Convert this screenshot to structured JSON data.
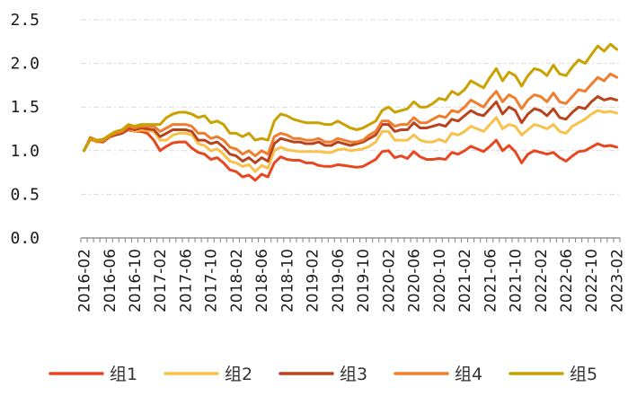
{
  "chart_data": {
    "type": "line",
    "title": "",
    "xlabel": "",
    "ylabel": "",
    "ylim": [
      0,
      2.5
    ],
    "yticks": [
      "0.0",
      "0.5",
      "1.0",
      "1.5",
      "2.0",
      "2.5"
    ],
    "grid": "horizontal-dashed",
    "legend_position": "bottom",
    "x_start": "2016-02",
    "x_tick_labels": [
      "2016-02",
      "2016-06",
      "2016-10",
      "2017-02",
      "2017-06",
      "2017-10",
      "2018-02",
      "2018-06",
      "2018-10",
      "2019-02",
      "2019-06",
      "2019-10",
      "2020-02",
      "2020-06",
      "2020-10",
      "2021-02",
      "2021-06",
      "2021-10",
      "2022-02",
      "2022-06",
      "2022-10",
      "2023-02"
    ],
    "series": [
      {
        "name": "组1",
        "color": "#E8461E",
        "values": [
          1.0,
          1.15,
          1.12,
          1.1,
          1.16,
          1.2,
          1.2,
          1.24,
          1.22,
          1.22,
          1.2,
          1.12,
          1.0,
          1.05,
          1.09,
          1.1,
          1.1,
          1.03,
          0.98,
          0.96,
          0.9,
          0.92,
          0.86,
          0.78,
          0.76,
          0.7,
          0.72,
          0.66,
          0.73,
          0.7,
          0.86,
          0.93,
          0.9,
          0.89,
          0.89,
          0.86,
          0.86,
          0.83,
          0.82,
          0.82,
          0.84,
          0.83,
          0.82,
          0.81,
          0.82,
          0.86,
          0.9,
          0.99,
          1.0,
          0.92,
          0.94,
          0.91,
          0.99,
          0.93,
          0.9,
          0.9,
          0.91,
          0.9,
          0.98,
          0.96,
          1.0,
          1.05,
          1.02,
          0.99,
          1.05,
          1.12,
          1.0,
          1.06,
          0.99,
          0.86,
          0.96,
          1.0,
          0.98,
          0.96,
          0.98,
          0.92,
          0.88,
          0.94,
          0.99,
          1.0,
          1.04,
          1.08,
          1.05,
          1.06,
          1.04
        ]
      },
      {
        "name": "组2",
        "color": "#F7C14A",
        "values": [
          1.0,
          1.13,
          1.1,
          1.1,
          1.15,
          1.18,
          1.2,
          1.26,
          1.22,
          1.24,
          1.23,
          1.22,
          1.12,
          1.12,
          1.18,
          1.2,
          1.2,
          1.18,
          1.08,
          1.06,
          1.0,
          1.02,
          0.96,
          0.88,
          0.86,
          0.82,
          0.84,
          0.76,
          0.83,
          0.8,
          1.0,
          1.04,
          1.01,
          1.0,
          0.99,
          0.99,
          0.99,
          0.99,
          0.98,
          0.98,
          1.01,
          1.02,
          1.0,
          1.01,
          1.02,
          1.05,
          1.1,
          1.22,
          1.22,
          1.12,
          1.12,
          1.12,
          1.18,
          1.12,
          1.1,
          1.1,
          1.13,
          1.1,
          1.2,
          1.18,
          1.22,
          1.28,
          1.25,
          1.22,
          1.3,
          1.38,
          1.25,
          1.3,
          1.28,
          1.18,
          1.24,
          1.3,
          1.28,
          1.25,
          1.3,
          1.22,
          1.2,
          1.28,
          1.32,
          1.36,
          1.42,
          1.46,
          1.44,
          1.45,
          1.43
        ]
      },
      {
        "name": "组3",
        "color": "#B8431F",
        "values": [
          1.0,
          1.14,
          1.11,
          1.1,
          1.16,
          1.18,
          1.2,
          1.26,
          1.24,
          1.26,
          1.25,
          1.24,
          1.16,
          1.2,
          1.24,
          1.24,
          1.24,
          1.22,
          1.12,
          1.12,
          1.08,
          1.1,
          1.04,
          0.96,
          0.94,
          0.88,
          0.92,
          0.86,
          0.92,
          0.88,
          1.08,
          1.14,
          1.12,
          1.1,
          1.1,
          1.08,
          1.08,
          1.1,
          1.06,
          1.06,
          1.1,
          1.08,
          1.06,
          1.08,
          1.1,
          1.14,
          1.18,
          1.3,
          1.3,
          1.22,
          1.24,
          1.24,
          1.32,
          1.26,
          1.26,
          1.28,
          1.3,
          1.28,
          1.36,
          1.34,
          1.4,
          1.46,
          1.42,
          1.4,
          1.48,
          1.56,
          1.42,
          1.5,
          1.46,
          1.32,
          1.42,
          1.48,
          1.46,
          1.4,
          1.48,
          1.38,
          1.36,
          1.44,
          1.5,
          1.48,
          1.56,
          1.62,
          1.58,
          1.6,
          1.58
        ]
      },
      {
        "name": "组4",
        "color": "#F07D2E",
        "values": [
          1.0,
          1.13,
          1.11,
          1.11,
          1.17,
          1.2,
          1.22,
          1.28,
          1.26,
          1.28,
          1.28,
          1.28,
          1.22,
          1.26,
          1.3,
          1.3,
          1.3,
          1.28,
          1.2,
          1.2,
          1.14,
          1.16,
          1.12,
          1.04,
          1.02,
          0.96,
          1.0,
          0.94,
          1.0,
          0.96,
          1.16,
          1.2,
          1.18,
          1.14,
          1.14,
          1.12,
          1.12,
          1.14,
          1.1,
          1.1,
          1.14,
          1.12,
          1.1,
          1.1,
          1.12,
          1.18,
          1.22,
          1.34,
          1.34,
          1.28,
          1.3,
          1.3,
          1.38,
          1.32,
          1.32,
          1.36,
          1.4,
          1.38,
          1.46,
          1.44,
          1.5,
          1.58,
          1.54,
          1.5,
          1.6,
          1.68,
          1.56,
          1.64,
          1.6,
          1.48,
          1.58,
          1.64,
          1.62,
          1.56,
          1.66,
          1.56,
          1.54,
          1.62,
          1.7,
          1.68,
          1.76,
          1.84,
          1.8,
          1.88,
          1.84
        ]
      },
      {
        "name": "组5",
        "color": "#C9A100",
        "values": [
          1.0,
          1.14,
          1.12,
          1.13,
          1.18,
          1.22,
          1.24,
          1.3,
          1.28,
          1.3,
          1.3,
          1.3,
          1.3,
          1.38,
          1.42,
          1.44,
          1.44,
          1.42,
          1.38,
          1.4,
          1.32,
          1.34,
          1.3,
          1.2,
          1.2,
          1.16,
          1.2,
          1.12,
          1.14,
          1.12,
          1.34,
          1.42,
          1.4,
          1.36,
          1.34,
          1.32,
          1.32,
          1.32,
          1.3,
          1.3,
          1.34,
          1.3,
          1.26,
          1.24,
          1.26,
          1.3,
          1.34,
          1.46,
          1.5,
          1.44,
          1.46,
          1.48,
          1.56,
          1.5,
          1.5,
          1.54,
          1.6,
          1.58,
          1.68,
          1.64,
          1.7,
          1.8,
          1.76,
          1.72,
          1.84,
          1.94,
          1.8,
          1.9,
          1.86,
          1.74,
          1.86,
          1.94,
          1.92,
          1.86,
          1.98,
          1.88,
          1.86,
          1.96,
          2.04,
          2.0,
          2.1,
          2.2,
          2.14,
          2.22,
          2.16
        ]
      }
    ]
  }
}
